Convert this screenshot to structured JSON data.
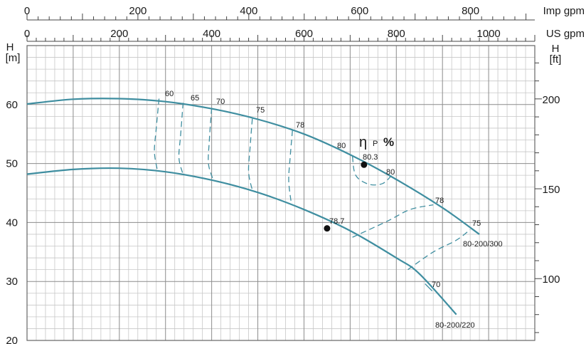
{
  "chart_data": {
    "type": "line",
    "axes": {
      "x_us": {
        "unit": "US gpm",
        "range": [
          0,
          1100
        ],
        "ticks": [
          0,
          200,
          400,
          600,
          800,
          1000
        ]
      },
      "x_imp": {
        "unit": "Imp gpm",
        "range": [
          0,
          916
        ],
        "ticks": [
          0,
          200,
          400,
          600,
          800
        ]
      },
      "y_m": {
        "unit_line1": "H",
        "unit_line2": "[m]",
        "range": [
          20,
          70
        ],
        "ticks": [
          20,
          30,
          40,
          50,
          60
        ]
      },
      "y_ft": {
        "unit_line1": "H",
        "unit_line2": "[ft]",
        "ticks": [
          100,
          150,
          200
        ]
      }
    },
    "grid": true,
    "series": [
      {
        "name": "80-200/300",
        "x": [
          0,
          100,
          200,
          300,
          400,
          500,
          600,
          700,
          800,
          900,
          980
        ],
        "y": [
          60.1,
          60.9,
          61.0,
          60.5,
          59.3,
          57.5,
          55.0,
          51.5,
          47.3,
          42.5,
          38.0
        ]
      },
      {
        "name": "80-200/220",
        "x": [
          0,
          100,
          200,
          300,
          400,
          500,
          600,
          700,
          800,
          850,
          930
        ],
        "y": [
          48.2,
          49.0,
          49.2,
          48.6,
          47.2,
          45.1,
          42.2,
          38.6,
          34.0,
          31.3,
          24.4
        ]
      }
    ],
    "efficiency_contours": [
      {
        "label": "60",
        "x": [
          286,
          280,
          276,
          282
        ],
        "y": [
          61.0,
          56.0,
          52.0,
          49.0
        ]
      },
      {
        "label": "65",
        "x": [
          338,
          333,
          329,
          337
        ],
        "y": [
          60.3,
          55.0,
          51.0,
          48.4
        ]
      },
      {
        "label": "70",
        "x": [
          400,
          395,
          393,
          402
        ],
        "y": [
          59.4,
          54.0,
          50.0,
          47.5
        ]
      },
      {
        "label": "75",
        "x": [
          488,
          483,
          480,
          488
        ],
        "y": [
          57.6,
          52.5,
          48.5,
          45.5
        ]
      },
      {
        "label": "78",
        "x": [
          575,
          570,
          567,
          573
        ],
        "y": [
          55.6,
          51.0,
          47.0,
          43.0
        ]
      },
      {
        "label": "80",
        "x": [
          705,
          712,
          740,
          770,
          790
        ],
        "y": [
          51.2,
          48.0,
          46.5,
          46.6,
          48.0
        ]
      },
      {
        "label": "78",
        "x": [
          705,
          780,
          830,
          880
        ],
        "y": [
          37.5,
          40.2,
          42.2,
          43.0
        ]
      },
      {
        "label": "75",
        "x": [
          825,
          880,
          930,
          960
        ],
        "y": [
          32.0,
          35.0,
          37.0,
          38.8
        ]
      },
      {
        "label": "70",
        "x": [
          870
        ],
        "y": [
          29.0
        ]
      }
    ],
    "bep_points": [
      {
        "label": "80.3",
        "x": 730,
        "y": 49.8
      },
      {
        "label": "78.7",
        "x": 650,
        "y": 39.0
      }
    ],
    "extra_labels": {
      "eta_symbol": "η",
      "eta_sub": "P",
      "percent": "%"
    }
  }
}
